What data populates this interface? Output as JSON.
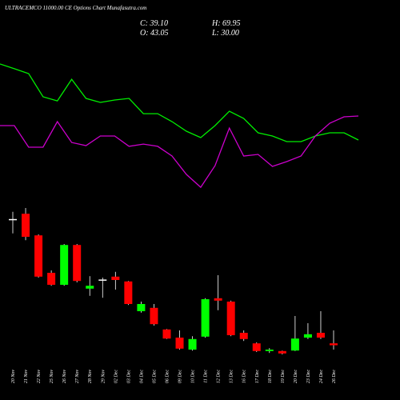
{
  "header": {
    "title": "ULTRACEMCO 11000.00 CE Options Chart Munafasutra.com",
    "stats": [
      "C: 39.10",
      "H: 69.95",
      "O: 43.05",
      "L: 30.00"
    ]
  },
  "chart_data": [
    {
      "type": "line",
      "ylim": [
        0,
        100
      ],
      "series": [
        {
          "color": "#00ee00",
          "values": [
            88.9,
            85.6,
            82.2,
            66.1,
            63.3,
            78.3,
            65,
            62.2,
            63.9,
            65,
            54.4,
            54.4,
            48.9,
            42.2,
            37.8,
            46.1,
            56.1,
            51.1,
            41.1,
            38.9,
            35,
            35,
            38.9,
            41.1,
            41.1,
            36.1
          ]
        },
        {
          "color": "#cc00cc",
          "values": [
            46.1,
            46.1,
            31.1,
            31.1,
            48.9,
            34.4,
            32.2,
            38.9,
            38.9,
            31.7,
            33.3,
            31.7,
            25,
            12.2,
            3.3,
            18.3,
            44.4,
            25,
            26.1,
            17.8,
            21.1,
            25,
            38.9,
            47.8,
            52.2,
            52.8
          ]
        }
      ]
    },
    {
      "type": "candlestick",
      "ylim": [
        0,
        340
      ],
      "up_color": "#00ff00",
      "down_color": "#ff0000",
      "flat_color": "#ffffff",
      "categories": [
        "20 Nov",
        "21 Nov",
        "22 Nov",
        "25 Nov",
        "26 Nov",
        "27 Nov",
        "28 Nov",
        "29 Nov",
        "02 Dec",
        "03 Dec",
        "04 Dec",
        "05 Dec",
        "06 Dec",
        "09 Dec",
        "10 Dec",
        "11 Dec",
        "12 Dec",
        "13 Dec",
        "16 Dec",
        "17 Dec",
        "18 Dec",
        "19 Dec",
        "20 Dec",
        "23 Dec",
        "24 Dec",
        "26 Dec"
      ],
      "open": [
        302,
        313,
        268,
        190,
        165,
        248,
        157,
        176,
        182,
        172,
        110,
        117,
        72,
        55,
        30,
        57,
        137,
        130,
        65,
        43,
        27,
        27,
        28,
        55,
        65,
        43.05
      ],
      "high": [
        317,
        325,
        270,
        195,
        250,
        250,
        183,
        180,
        192,
        173,
        130,
        125,
        73,
        70,
        58,
        137,
        185,
        132,
        70,
        45,
        33,
        28,
        100,
        85,
        110,
        69.95
      ],
      "low": [
        272,
        258,
        180,
        163,
        163,
        170,
        142,
        138,
        155,
        123,
        107,
        80,
        52,
        30,
        28,
        55,
        112,
        58,
        48,
        25,
        23,
        20,
        27,
        52,
        52,
        30.0
      ],
      "close": [
        302,
        265,
        182,
        165,
        248,
        173,
        163,
        176,
        175,
        125,
        125,
        83,
        53,
        32,
        52,
        135,
        132,
        60,
        52,
        27,
        30,
        22,
        53,
        62,
        55,
        39.1
      ]
    }
  ]
}
